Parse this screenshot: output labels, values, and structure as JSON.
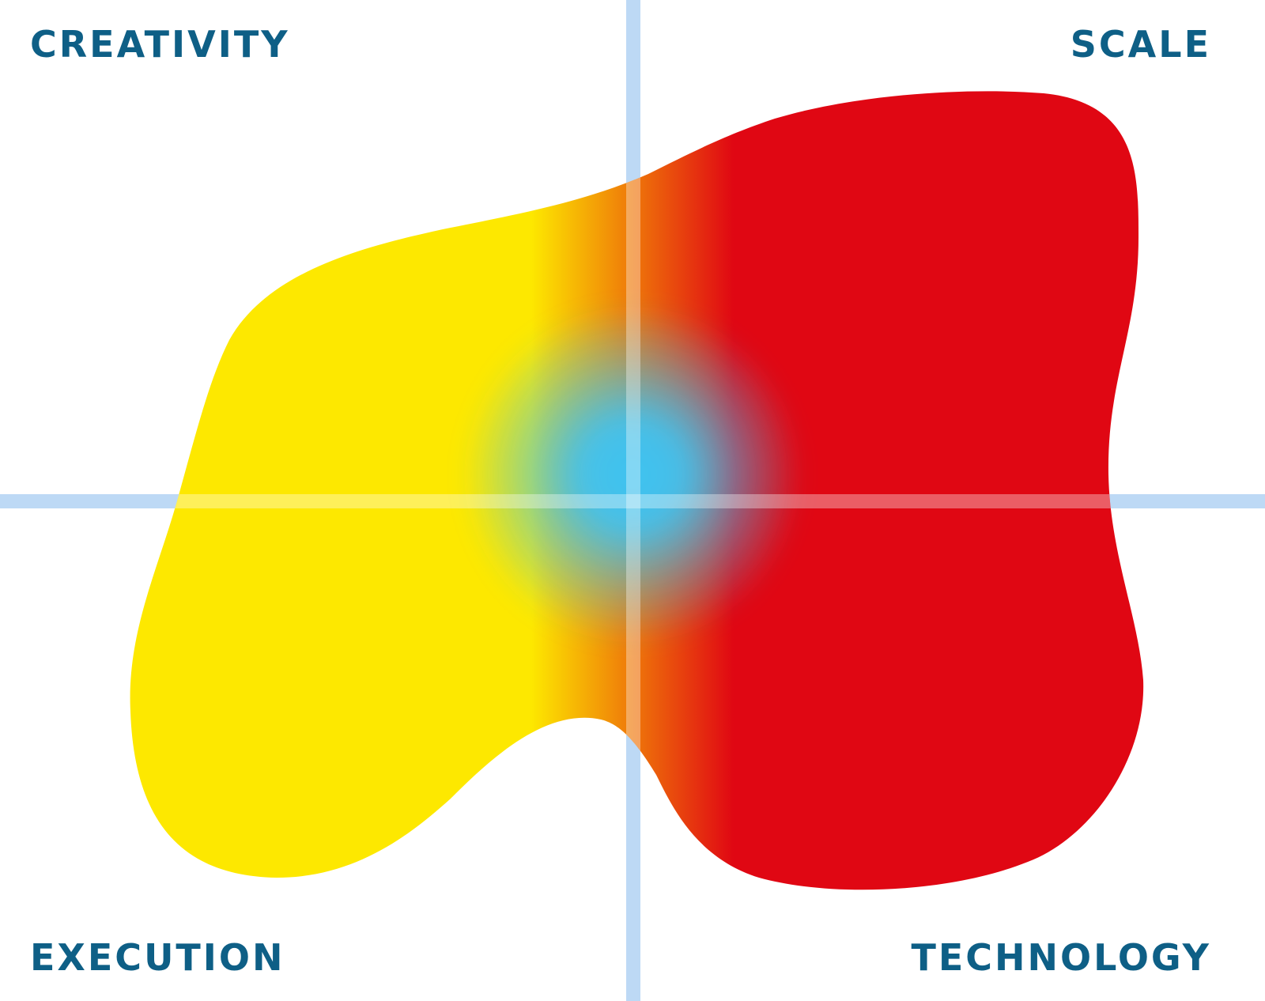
{
  "quadrants": {
    "top_left": "CREATIVITY",
    "top_right": "SCALE",
    "bottom_left": "EXECUTION",
    "bottom_right": "TECHNOLOGY"
  },
  "colors": {
    "label": "#0e5f86",
    "axis": "#bdd9f5",
    "yellow": "#fde800",
    "red": "#e00713",
    "blue": "#3fc3f2",
    "background": "#ffffff"
  }
}
